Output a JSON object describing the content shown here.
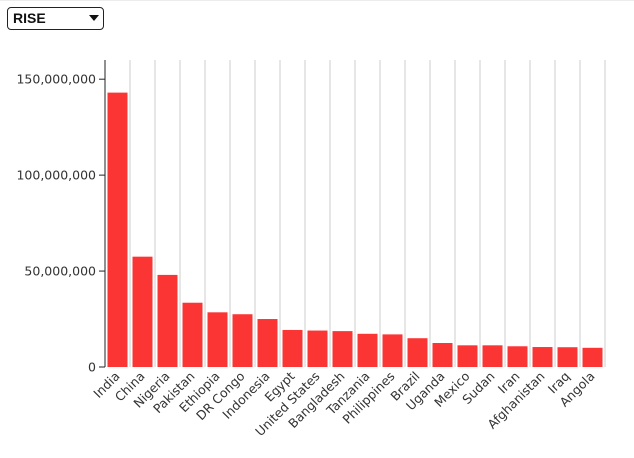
{
  "controls": {
    "metric_select": {
      "selected": "RISE"
    }
  },
  "colors": {
    "bar": "#fb3434",
    "grid": "#cccccc",
    "axis": "#222222",
    "text": "#333333"
  },
  "chart_data": {
    "type": "bar",
    "title": "",
    "xlabel": "",
    "ylabel": "",
    "ylim": [
      0,
      160000000
    ],
    "yticks": [
      0,
      50000000,
      100000000,
      150000000
    ],
    "ytick_labels": [
      "0",
      "50,000,000",
      "100,000,000",
      "150,000,000"
    ],
    "grid": "vertical",
    "categories": [
      "India",
      "China",
      "Nigeria",
      "Pakistan",
      "Ethiopia",
      "DR Congo",
      "Indonesia",
      "Egypt",
      "United States",
      "Bangladesh",
      "Tanzania",
      "Philippines",
      "Brazil",
      "Uganda",
      "Mexico",
      "Sudan",
      "Iran",
      "Afghanistan",
      "Iraq",
      "Angola"
    ],
    "values": [
      143000000,
      57500000,
      48000000,
      33500000,
      28500000,
      27500000,
      25000000,
      19300000,
      19000000,
      18700000,
      17300000,
      17000000,
      15000000,
      12500000,
      11300000,
      11300000,
      10800000,
      10400000,
      10300000,
      10000000
    ]
  }
}
